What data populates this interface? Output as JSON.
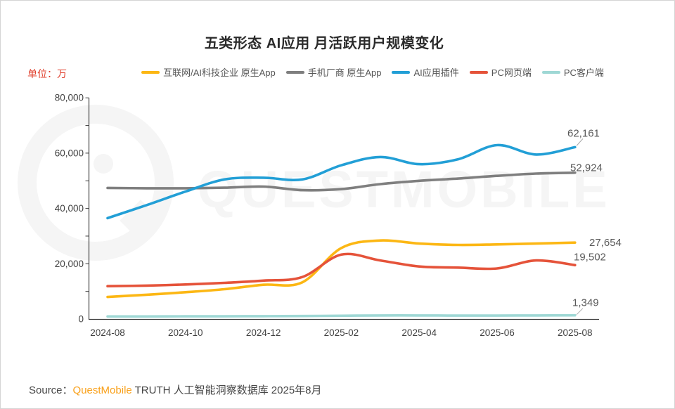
{
  "page": {
    "title": "五类形态 AI应用 月活跃用户规模变化",
    "unit_label": "单位：万",
    "watermark": "QUESTMOBILE",
    "source": {
      "prefix": "Source：",
      "brand": "QuestMobile",
      "suffix": " TRUTH 人工智能洞察数据库 2025年8月"
    }
  },
  "colors": {
    "unit_label_red": "#e0402e",
    "brand_orange": "#f9a11b",
    "axis": "#404040",
    "data_label_gray": "#595959",
    "watermark_gray": "#f5f5f5"
  },
  "chart_data": {
    "type": "line",
    "title": "五类形态 AI应用 月活跃用户规模变化",
    "unit": "万",
    "grid": false,
    "legend_position": "top",
    "ylim": [
      0,
      80000
    ],
    "y_ticks": [
      0,
      20000,
      40000,
      60000,
      80000
    ],
    "y_tick_labels": [
      "0",
      "20,000",
      "40,000",
      "60,000",
      "80,000"
    ],
    "x": [
      "2024-08",
      "2024-09",
      "2024-10",
      "2024-11",
      "2024-12",
      "2025-01",
      "2025-02",
      "2025-03",
      "2025-04",
      "2025-05",
      "2025-06",
      "2025-07",
      "2025-08"
    ],
    "x_tick_labels": [
      "2024-08",
      "2024-10",
      "2024-12",
      "2025-02",
      "2025-04",
      "2025-06",
      "2025-08"
    ],
    "series": [
      {
        "name": "互联网/AI科技企业 原生App",
        "color": "#fcb714",
        "values": [
          8000,
          8800,
          9700,
          10800,
          12400,
          13300,
          25700,
          28400,
          27300,
          26800,
          27000,
          27300,
          27654
        ],
        "end_label": "27,654"
      },
      {
        "name": "手机厂商 原生App",
        "color": "#7f7f7f",
        "values": [
          47400,
          47300,
          47300,
          47500,
          47900,
          46600,
          47000,
          48800,
          50000,
          50800,
          51800,
          52600,
          52924
        ],
        "end_label": "52,924"
      },
      {
        "name": "AI应用插件",
        "color": "#229fd6",
        "values": [
          36500,
          41200,
          46100,
          50500,
          51100,
          50500,
          55600,
          58600,
          56000,
          57800,
          62900,
          59500,
          62161
        ],
        "end_label": "62,161"
      },
      {
        "name": "PC网页端",
        "color": "#e5533a",
        "values": [
          11900,
          12100,
          12500,
          13100,
          13900,
          15200,
          23300,
          21200,
          19000,
          18600,
          18300,
          21200,
          19502
        ],
        "end_label": "19,502"
      },
      {
        "name": "PC客户端",
        "color": "#9fd8d5",
        "values": [
          950,
          950,
          1000,
          1000,
          1050,
          1100,
          1200,
          1300,
          1300,
          1250,
          1250,
          1300,
          1349
        ],
        "end_label": "1,349"
      }
    ]
  }
}
